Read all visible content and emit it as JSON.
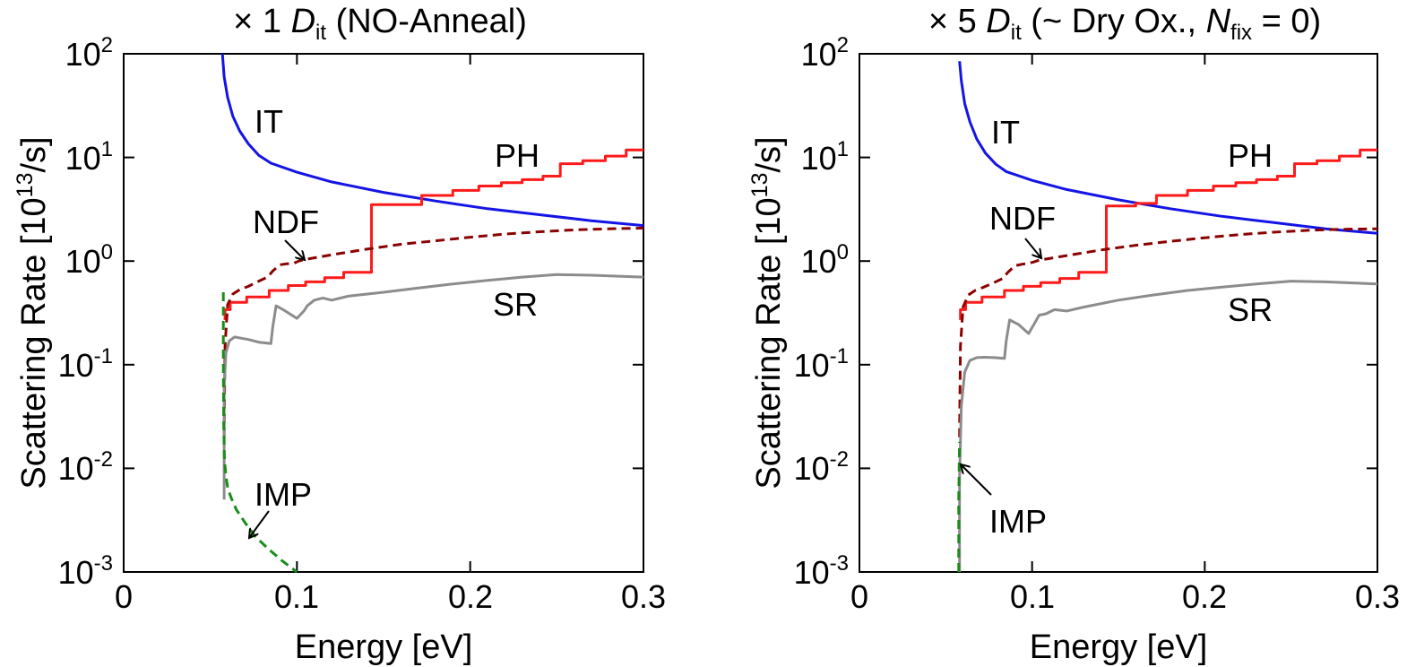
{
  "chart_data": [
    {
      "type": "line",
      "title_parts": {
        "lead": "× 1 ",
        "italic": "D",
        "sub": "it",
        "rest": " (NO-Anneal)"
      },
      "xlabel": "Energy [eV]",
      "ylabel": {
        "main": "Scattering Rate [10",
        "sup": "13",
        "tail": "/s]"
      },
      "x_ticks": [
        "0",
        "0.1",
        "0.2",
        "0.3"
      ],
      "y_ticks": [
        {
          "base": "10",
          "exp": "-3"
        },
        {
          "base": "10",
          "exp": "-2"
        },
        {
          "base": "10",
          "exp": "-1"
        },
        {
          "base": "10",
          "exp": "0"
        },
        {
          "base": "10",
          "exp": "1"
        },
        {
          "base": "10",
          "exp": "2"
        }
      ],
      "xlim": [
        0,
        0.3
      ],
      "ylim": [
        0.001,
        100
      ],
      "yscale": "log",
      "grid": false,
      "series": [
        {
          "name": "IT",
          "color": "#1414e6",
          "dash": false,
          "x": [
            0.057,
            0.058,
            0.06,
            0.063,
            0.067,
            0.072,
            0.078,
            0.085,
            0.1,
            0.12,
            0.15,
            0.18,
            0.21,
            0.24,
            0.27,
            0.3
          ],
          "y": [
            100,
            60,
            38,
            25,
            18,
            13.5,
            10.5,
            8.8,
            7.2,
            5.8,
            4.6,
            3.8,
            3.2,
            2.8,
            2.45,
            2.2
          ]
        },
        {
          "name": "PH",
          "color": "#ff1a1a",
          "dash": false,
          "x": [
            0.0585,
            0.0585,
            0.0615,
            0.0615,
            0.071,
            0.071,
            0.084,
            0.084,
            0.095,
            0.095,
            0.105,
            0.105,
            0.116,
            0.116,
            0.127,
            0.127,
            0.143,
            0.143,
            0.172,
            0.172,
            0.19,
            0.19,
            0.205,
            0.205,
            0.218,
            0.218,
            0.23,
            0.23,
            0.242,
            0.242,
            0.252,
            0.252,
            0.265,
            0.265,
            0.278,
            0.278,
            0.29,
            0.29,
            0.3
          ],
          "y": [
            0.27,
            0.34,
            0.34,
            0.4,
            0.4,
            0.45,
            0.45,
            0.52,
            0.52,
            0.58,
            0.58,
            0.63,
            0.63,
            0.69,
            0.69,
            0.78,
            0.78,
            3.5,
            3.5,
            4.3,
            4.3,
            4.8,
            4.8,
            5.3,
            5.3,
            5.7,
            5.7,
            6.1,
            6.1,
            6.6,
            6.6,
            8.7,
            8.7,
            9.3,
            9.3,
            10.3,
            10.3,
            11.8,
            11.8
          ]
        },
        {
          "name": "NDF",
          "color": "#8b0000",
          "dash": true,
          "x": [
            0.058,
            0.0585,
            0.06,
            0.063,
            0.067,
            0.072,
            0.078,
            0.083,
            0.086,
            0.09,
            0.094,
            0.098,
            0.101,
            0.104,
            0.12,
            0.14,
            0.16,
            0.18,
            0.2,
            0.22,
            0.24,
            0.26,
            0.28,
            0.3
          ],
          "y": [
            0.02,
            0.15,
            0.38,
            0.48,
            0.53,
            0.57,
            0.64,
            0.7,
            0.8,
            0.92,
            0.94,
            0.95,
            1.0,
            1.03,
            1.15,
            1.3,
            1.45,
            1.57,
            1.7,
            1.82,
            1.92,
            2.0,
            2.05,
            2.08
          ]
        },
        {
          "name": "SR",
          "color": "#8c8c8c",
          "dash": false,
          "x": [
            0.058,
            0.058,
            0.059,
            0.061,
            0.064,
            0.068,
            0.072,
            0.078,
            0.085,
            0.086,
            0.088,
            0.092,
            0.1,
            0.104,
            0.106,
            0.11,
            0.115,
            0.12,
            0.13,
            0.15,
            0.17,
            0.19,
            0.21,
            0.23,
            0.25,
            0.27,
            0.3
          ],
          "y": [
            0.005,
            0.06,
            0.13,
            0.17,
            0.185,
            0.18,
            0.175,
            0.165,
            0.16,
            0.23,
            0.37,
            0.34,
            0.28,
            0.33,
            0.37,
            0.42,
            0.44,
            0.42,
            0.46,
            0.5,
            0.55,
            0.6,
            0.65,
            0.7,
            0.74,
            0.73,
            0.7
          ]
        },
        {
          "name": "IMP",
          "color": "#1a8c1a",
          "dash": true,
          "x": [
            0.0575,
            0.0575,
            0.0578,
            0.0582,
            0.059,
            0.06,
            0.062,
            0.065,
            0.07,
            0.076,
            0.083,
            0.091,
            0.1
          ],
          "y": [
            0.5,
            0.1,
            0.025,
            0.012,
            0.0085,
            0.0065,
            0.0052,
            0.004,
            0.003,
            0.0022,
            0.0017,
            0.0013,
            0.001
          ]
        }
      ],
      "annotations": [
        "IT",
        "PH",
        "NDF",
        "SR",
        "IMP"
      ]
    },
    {
      "type": "line",
      "title_parts": {
        "lead": "× 5 ",
        "italic": "D",
        "sub": "it",
        "rest": " (~ Dry Ox., ",
        "italic2": "N",
        "sub2": "fix",
        "rest2": " = 0)"
      },
      "xlabel": "Energy [eV]",
      "ylabel": {
        "main": "Scattering Rate [10",
        "sup": "13",
        "tail": "/s]"
      },
      "x_ticks": [
        "0",
        "0.1",
        "0.2",
        "0.3"
      ],
      "y_ticks": [
        {
          "base": "10",
          "exp": "-3"
        },
        {
          "base": "10",
          "exp": "-2"
        },
        {
          "base": "10",
          "exp": "-1"
        },
        {
          "base": "10",
          "exp": "0"
        },
        {
          "base": "10",
          "exp": "1"
        },
        {
          "base": "10",
          "exp": "2"
        }
      ],
      "xlim": [
        0,
        0.3
      ],
      "ylim": [
        0.001,
        100
      ],
      "yscale": "log",
      "grid": false,
      "series": [
        {
          "name": "IT",
          "color": "#1414e6",
          "dash": false,
          "x": [
            0.058,
            0.059,
            0.061,
            0.064,
            0.068,
            0.073,
            0.079,
            0.085,
            0.1,
            0.12,
            0.15,
            0.18,
            0.21,
            0.24,
            0.27,
            0.3
          ],
          "y": [
            85,
            55,
            33,
            22,
            15,
            11,
            8.6,
            7.3,
            6.0,
            4.9,
            3.9,
            3.2,
            2.7,
            2.35,
            2.05,
            1.85
          ]
        },
        {
          "name": "PH",
          "color": "#ff1a1a",
          "dash": false,
          "x": [
            0.0585,
            0.0585,
            0.0615,
            0.0615,
            0.071,
            0.071,
            0.084,
            0.084,
            0.095,
            0.095,
            0.105,
            0.105,
            0.116,
            0.116,
            0.127,
            0.127,
            0.143,
            0.143,
            0.16,
            0.16,
            0.172,
            0.172,
            0.19,
            0.19,
            0.205,
            0.205,
            0.218,
            0.218,
            0.23,
            0.23,
            0.242,
            0.242,
            0.252,
            0.252,
            0.265,
            0.265,
            0.278,
            0.278,
            0.29,
            0.29,
            0.3
          ],
          "y": [
            0.27,
            0.34,
            0.34,
            0.4,
            0.4,
            0.45,
            0.45,
            0.52,
            0.52,
            0.57,
            0.57,
            0.62,
            0.62,
            0.68,
            0.68,
            0.78,
            0.78,
            3.4,
            3.4,
            3.6,
            3.6,
            4.3,
            4.3,
            4.8,
            4.8,
            5.3,
            5.3,
            5.7,
            5.7,
            6.1,
            6.1,
            6.6,
            6.6,
            8.7,
            8.7,
            9.3,
            9.3,
            10.3,
            10.3,
            11.8,
            11.8
          ]
        },
        {
          "name": "NDF",
          "color": "#8b0000",
          "dash": true,
          "x": [
            0.058,
            0.0585,
            0.06,
            0.063,
            0.067,
            0.072,
            0.078,
            0.083,
            0.086,
            0.09,
            0.094,
            0.098,
            0.101,
            0.104,
            0.12,
            0.14,
            0.16,
            0.18,
            0.2,
            0.22,
            0.24,
            0.26,
            0.28,
            0.3
          ],
          "y": [
            0.02,
            0.15,
            0.36,
            0.47,
            0.52,
            0.56,
            0.62,
            0.68,
            0.78,
            0.9,
            0.93,
            0.95,
            0.98,
            1.02,
            1.13,
            1.28,
            1.42,
            1.55,
            1.68,
            1.8,
            1.9,
            1.98,
            2.03,
            2.05
          ]
        },
        {
          "name": "SR",
          "color": "#8c8c8c",
          "dash": false,
          "x": [
            0.058,
            0.058,
            0.059,
            0.061,
            0.064,
            0.068,
            0.072,
            0.078,
            0.084,
            0.085,
            0.087,
            0.092,
            0.098,
            0.102,
            0.104,
            0.108,
            0.113,
            0.12,
            0.13,
            0.15,
            0.17,
            0.19,
            0.21,
            0.23,
            0.25,
            0.27,
            0.3
          ],
          "y": [
            0.001,
            0.008,
            0.04,
            0.085,
            0.11,
            0.117,
            0.118,
            0.117,
            0.115,
            0.17,
            0.27,
            0.245,
            0.2,
            0.26,
            0.3,
            0.31,
            0.34,
            0.33,
            0.36,
            0.42,
            0.47,
            0.52,
            0.56,
            0.6,
            0.64,
            0.63,
            0.6
          ]
        },
        {
          "name": "IMP",
          "color": "#1a8c1a",
          "dash": true,
          "x": [
            0.0575,
            0.0575,
            0.0578,
            0.058
          ],
          "y": [
            0.001,
            0.005,
            0.012,
            0.018
          ]
        }
      ],
      "annotations": [
        "IT",
        "PH",
        "NDF",
        "SR",
        "IMP"
      ]
    }
  ]
}
